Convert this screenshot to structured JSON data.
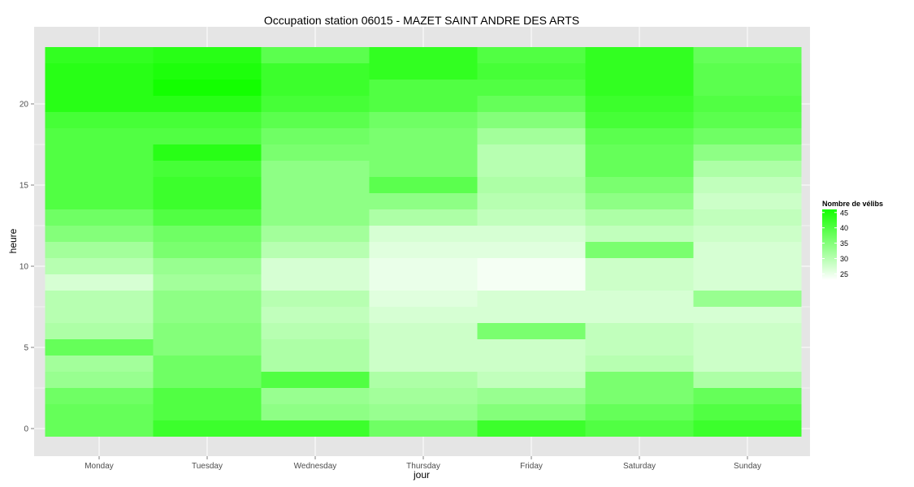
{
  "chart_data": {
    "type": "heatmap",
    "title": "Occupation station 06015 - MAZET SAINT ANDRE DES ARTS",
    "xlabel": "jour",
    "ylabel": "heure",
    "x": [
      "Monday",
      "Tuesday",
      "Wednesday",
      "Thursday",
      "Friday",
      "Saturday",
      "Sunday"
    ],
    "y": [
      0,
      1,
      2,
      3,
      4,
      5,
      6,
      7,
      8,
      9,
      10,
      11,
      12,
      13,
      14,
      15,
      16,
      17,
      18,
      19,
      20,
      21,
      22,
      23
    ],
    "y_ticks": [
      0,
      5,
      10,
      15,
      20
    ],
    "ylim": [
      -0.5,
      23.5
    ],
    "values": [
      [
        38,
        42,
        42,
        37,
        42,
        40,
        42
      ],
      [
        38,
        40,
        34,
        33,
        35,
        38,
        40
      ],
      [
        37,
        40,
        33,
        32,
        33,
        36,
        38
      ],
      [
        33,
        37,
        40,
        31,
        29,
        36,
        31
      ],
      [
        32,
        37,
        31,
        28,
        28,
        30,
        28
      ],
      [
        38,
        35,
        31,
        28,
        28,
        29,
        28
      ],
      [
        31,
        35,
        30,
        28,
        36,
        29,
        28
      ],
      [
        30,
        34,
        29,
        27,
        27,
        27,
        27
      ],
      [
        30,
        34,
        30,
        26,
        27,
        27,
        33
      ],
      [
        27,
        32,
        27,
        25,
        24,
        28,
        27
      ],
      [
        30,
        33,
        27,
        25,
        24,
        28,
        27
      ],
      [
        32,
        36,
        30,
        26,
        26,
        36,
        27
      ],
      [
        35,
        37,
        32,
        27,
        27,
        29,
        28
      ],
      [
        37,
        40,
        34,
        31,
        29,
        31,
        29
      ],
      [
        40,
        42,
        34,
        34,
        30,
        34,
        28
      ],
      [
        40,
        42,
        34,
        39,
        31,
        36,
        29
      ],
      [
        40,
        41,
        34,
        36,
        30,
        38,
        31
      ],
      [
        40,
        44,
        36,
        36,
        30,
        38,
        34
      ],
      [
        40,
        40,
        37,
        36,
        32,
        39,
        37
      ],
      [
        41,
        41,
        39,
        37,
        35,
        41,
        39
      ],
      [
        44,
        44,
        41,
        40,
        38,
        42,
        40
      ],
      [
        44,
        46,
        42,
        40,
        40,
        43,
        39
      ],
      [
        44,
        45,
        42,
        43,
        41,
        43,
        39
      ],
      [
        43,
        44,
        39,
        43,
        40,
        43,
        38
      ]
    ],
    "legend": {
      "title": "Nombre de vélibs",
      "ticks": [
        45,
        40,
        35,
        30,
        25
      ],
      "min": 23,
      "max": 46,
      "low_color": "#ffffff",
      "high_color": "#13ff00",
      "position": "right"
    },
    "background_color": "#e5e5e5",
    "grid_color": "#ffffff",
    "grid": true
  }
}
